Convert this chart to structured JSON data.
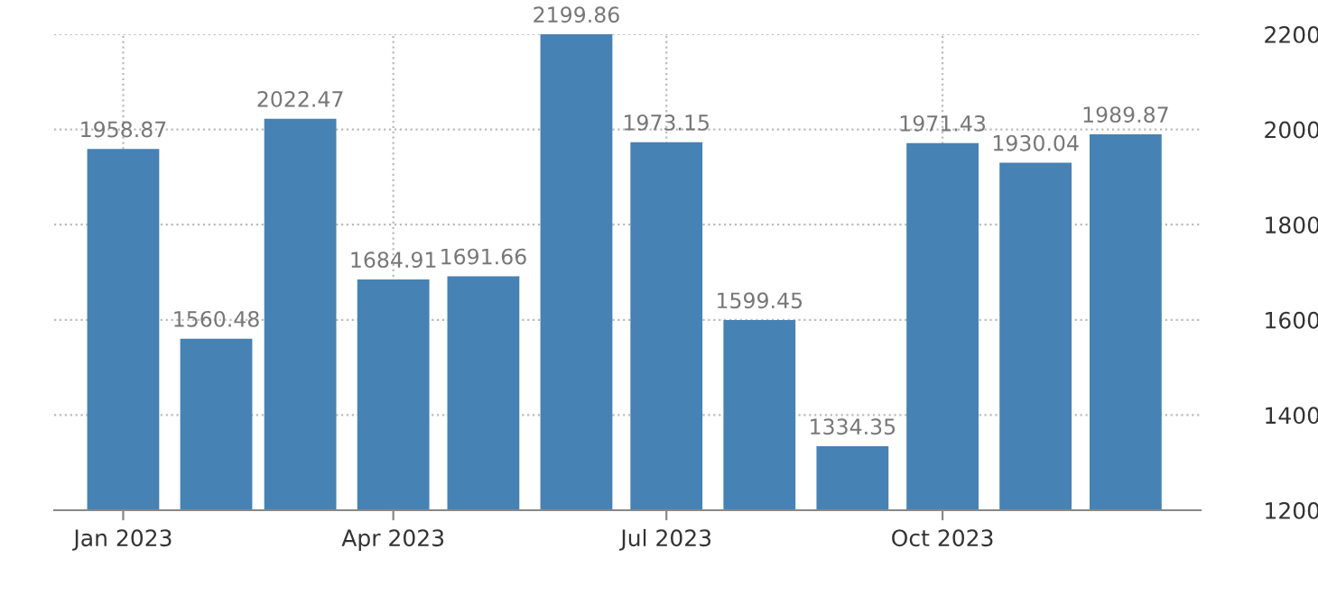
{
  "chart_data": {
    "type": "bar",
    "x": [
      "2023-01",
      "2023-02",
      "2023-03",
      "2023-04",
      "2023-05",
      "2023-06",
      "2023-07",
      "2023-08",
      "2023-09",
      "2023-10",
      "2023-11",
      "2023-12"
    ],
    "values": [
      1958.87,
      1560.48,
      2022.47,
      1684.91,
      1691.66,
      2199.86,
      1973.15,
      1599.45,
      1334.35,
      1971.43,
      1930.04,
      1989.87
    ],
    "color": "#4682b4",
    "data_labels": true,
    "xlim": [
      "2022-12-09",
      "2023-12-26"
    ],
    "xticks": [
      {
        "value": "2023-01",
        "label": "Jan 2023"
      },
      {
        "value": "2023-04",
        "label": "Apr 2023"
      },
      {
        "value": "2023-07",
        "label": "Jul 2023"
      },
      {
        "value": "2023-10",
        "label": "Oct 2023"
      }
    ],
    "ylim": [
      1200,
      2200
    ],
    "yticks": [
      1200,
      1400,
      1600,
      1800,
      2000,
      2200
    ],
    "grid": true
  }
}
